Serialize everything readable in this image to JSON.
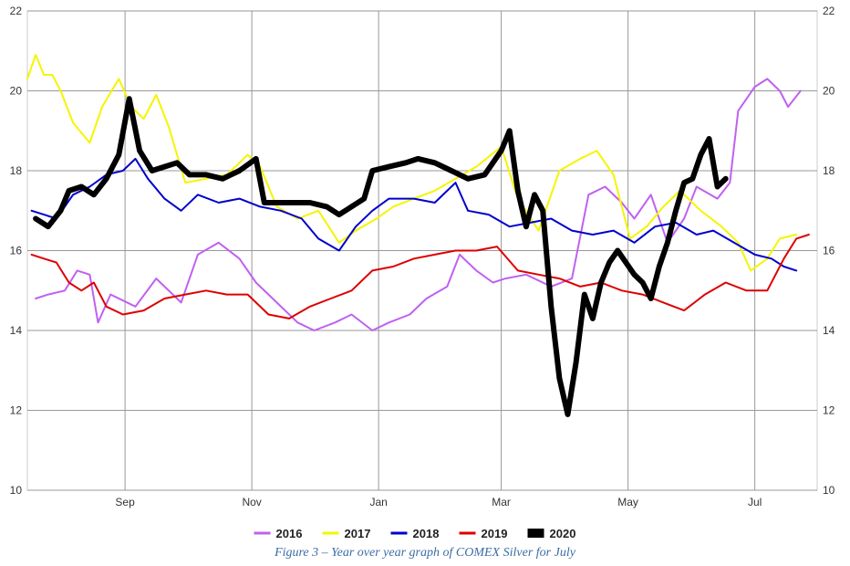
{
  "caption": "Figure 3 – Year over year graph of COMEX Silver for July",
  "chart_data": {
    "type": "line",
    "title": "",
    "xlabel": "",
    "ylabel": "",
    "x_tick_labels": [
      "Sep",
      "Nov",
      "Jan",
      "Mar",
      "May",
      "Jul"
    ],
    "x_tick_days": [
      31,
      92,
      153,
      212,
      273,
      334
    ],
    "x_range_days": [
      -16,
      364
    ],
    "ylim": [
      10,
      22
    ],
    "y_ticks": [
      10,
      12,
      14,
      16,
      18,
      20,
      22
    ],
    "y_axes": "both",
    "grid": true,
    "legend_position": "bottom",
    "series": [
      {
        "name": "2016",
        "color": "#c061f0",
        "width": 2,
        "points": [
          [
            -12,
            14.8
          ],
          [
            -6,
            14.9
          ],
          [
            2,
            15.0
          ],
          [
            8,
            15.5
          ],
          [
            14,
            15.4
          ],
          [
            18,
            14.2
          ],
          [
            24,
            14.9
          ],
          [
            36,
            14.6
          ],
          [
            46,
            15.3
          ],
          [
            58,
            14.7
          ],
          [
            66,
            15.9
          ],
          [
            76,
            16.2
          ],
          [
            86,
            15.8
          ],
          [
            94,
            15.2
          ],
          [
            104,
            14.7
          ],
          [
            114,
            14.2
          ],
          [
            122,
            14.0
          ],
          [
            132,
            14.2
          ],
          [
            140,
            14.4
          ],
          [
            150,
            14.0
          ],
          [
            158,
            14.2
          ],
          [
            168,
            14.4
          ],
          [
            176,
            14.8
          ],
          [
            186,
            15.1
          ],
          [
            192,
            15.9
          ],
          [
            200,
            15.5
          ],
          [
            208,
            15.2
          ],
          [
            214,
            15.3
          ],
          [
            224,
            15.4
          ],
          [
            236,
            15.1
          ],
          [
            246,
            15.3
          ],
          [
            254,
            17.4
          ],
          [
            262,
            17.6
          ],
          [
            270,
            17.2
          ],
          [
            276,
            16.8
          ],
          [
            284,
            17.4
          ],
          [
            292,
            16.2
          ],
          [
            300,
            16.8
          ],
          [
            306,
            17.6
          ],
          [
            316,
            17.3
          ],
          [
            322,
            17.7
          ],
          [
            326,
            19.5
          ],
          [
            334,
            20.1
          ],
          [
            340,
            20.3
          ],
          [
            346,
            20.0
          ],
          [
            350,
            19.6
          ],
          [
            356,
            20.0
          ]
        ]
      },
      {
        "name": "2017",
        "color": "#f5f500",
        "width": 2,
        "points": [
          [
            -16,
            20.3
          ],
          [
            -12,
            20.9
          ],
          [
            -8,
            20.4
          ],
          [
            -4,
            20.4
          ],
          [
            0,
            20.0
          ],
          [
            6,
            19.2
          ],
          [
            14,
            18.7
          ],
          [
            20,
            19.6
          ],
          [
            28,
            20.3
          ],
          [
            34,
            19.6
          ],
          [
            40,
            19.3
          ],
          [
            46,
            19.9
          ],
          [
            52,
            19.1
          ],
          [
            60,
            17.7
          ],
          [
            70,
            17.8
          ],
          [
            80,
            17.9
          ],
          [
            90,
            18.4
          ],
          [
            96,
            18.1
          ],
          [
            104,
            17.1
          ],
          [
            114,
            16.8
          ],
          [
            124,
            17.0
          ],
          [
            134,
            16.2
          ],
          [
            142,
            16.5
          ],
          [
            152,
            16.8
          ],
          [
            160,
            17.1
          ],
          [
            170,
            17.3
          ],
          [
            180,
            17.5
          ],
          [
            190,
            17.8
          ],
          [
            200,
            18.1
          ],
          [
            212,
            18.6
          ],
          [
            220,
            17.3
          ],
          [
            230,
            16.5
          ],
          [
            240,
            18.0
          ],
          [
            250,
            18.3
          ],
          [
            258,
            18.5
          ],
          [
            266,
            17.9
          ],
          [
            274,
            16.3
          ],
          [
            282,
            16.6
          ],
          [
            290,
            17.1
          ],
          [
            298,
            17.5
          ],
          [
            308,
            17.0
          ],
          [
            318,
            16.6
          ],
          [
            326,
            16.2
          ],
          [
            332,
            15.5
          ],
          [
            340,
            15.8
          ],
          [
            346,
            16.3
          ],
          [
            354,
            16.4
          ]
        ]
      },
      {
        "name": "2018",
        "color": "#0000cc",
        "width": 2,
        "points": [
          [
            -14,
            17.0
          ],
          [
            -8,
            16.9
          ],
          [
            -2,
            16.8
          ],
          [
            6,
            17.4
          ],
          [
            14,
            17.6
          ],
          [
            22,
            17.9
          ],
          [
            30,
            18.0
          ],
          [
            36,
            18.3
          ],
          [
            42,
            17.8
          ],
          [
            50,
            17.3
          ],
          [
            58,
            17.0
          ],
          [
            66,
            17.4
          ],
          [
            76,
            17.2
          ],
          [
            86,
            17.3
          ],
          [
            96,
            17.1
          ],
          [
            106,
            17.0
          ],
          [
            116,
            16.8
          ],
          [
            124,
            16.3
          ],
          [
            134,
            16.0
          ],
          [
            142,
            16.6
          ],
          [
            150,
            17.0
          ],
          [
            158,
            17.3
          ],
          [
            170,
            17.3
          ],
          [
            180,
            17.2
          ],
          [
            190,
            17.7
          ],
          [
            196,
            17.0
          ],
          [
            206,
            16.9
          ],
          [
            216,
            16.6
          ],
          [
            226,
            16.7
          ],
          [
            236,
            16.8
          ],
          [
            246,
            16.5
          ],
          [
            256,
            16.4
          ],
          [
            266,
            16.5
          ],
          [
            276,
            16.2
          ],
          [
            286,
            16.6
          ],
          [
            296,
            16.7
          ],
          [
            306,
            16.4
          ],
          [
            314,
            16.5
          ],
          [
            324,
            16.2
          ],
          [
            334,
            15.9
          ],
          [
            342,
            15.8
          ],
          [
            348,
            15.6
          ],
          [
            354,
            15.5
          ]
        ]
      },
      {
        "name": "2019",
        "color": "#dd0000",
        "width": 2,
        "points": [
          [
            -14,
            15.9
          ],
          [
            -8,
            15.8
          ],
          [
            -2,
            15.7
          ],
          [
            4,
            15.2
          ],
          [
            10,
            15.0
          ],
          [
            16,
            15.2
          ],
          [
            22,
            14.6
          ],
          [
            30,
            14.4
          ],
          [
            40,
            14.5
          ],
          [
            50,
            14.8
          ],
          [
            60,
            14.9
          ],
          [
            70,
            15.0
          ],
          [
            80,
            14.9
          ],
          [
            90,
            14.9
          ],
          [
            100,
            14.4
          ],
          [
            110,
            14.3
          ],
          [
            120,
            14.6
          ],
          [
            130,
            14.8
          ],
          [
            140,
            15.0
          ],
          [
            150,
            15.5
          ],
          [
            160,
            15.6
          ],
          [
            170,
            15.8
          ],
          [
            180,
            15.9
          ],
          [
            190,
            16.0
          ],
          [
            200,
            16.0
          ],
          [
            210,
            16.1
          ],
          [
            220,
            15.5
          ],
          [
            230,
            15.4
          ],
          [
            240,
            15.3
          ],
          [
            250,
            15.1
          ],
          [
            260,
            15.2
          ],
          [
            270,
            15.0
          ],
          [
            280,
            14.9
          ],
          [
            290,
            14.7
          ],
          [
            300,
            14.5
          ],
          [
            310,
            14.9
          ],
          [
            320,
            15.2
          ],
          [
            330,
            15.0
          ],
          [
            340,
            15.0
          ],
          [
            348,
            15.8
          ],
          [
            354,
            16.3
          ],
          [
            360,
            16.4
          ]
        ]
      },
      {
        "name": "2020",
        "color": "#000000",
        "width": 6,
        "points": [
          [
            -12,
            16.8
          ],
          [
            -6,
            16.6
          ],
          [
            0,
            17.0
          ],
          [
            4,
            17.5
          ],
          [
            10,
            17.6
          ],
          [
            16,
            17.4
          ],
          [
            22,
            17.8
          ],
          [
            28,
            18.4
          ],
          [
            33,
            19.8
          ],
          [
            38,
            18.5
          ],
          [
            44,
            18.0
          ],
          [
            50,
            18.1
          ],
          [
            56,
            18.2
          ],
          [
            62,
            17.9
          ],
          [
            70,
            17.9
          ],
          [
            78,
            17.8
          ],
          [
            86,
            18.0
          ],
          [
            94,
            18.3
          ],
          [
            98,
            17.2
          ],
          [
            104,
            17.2
          ],
          [
            112,
            17.2
          ],
          [
            120,
            17.2
          ],
          [
            128,
            17.1
          ],
          [
            134,
            16.9
          ],
          [
            140,
            17.1
          ],
          [
            146,
            17.3
          ],
          [
            150,
            18.0
          ],
          [
            158,
            18.1
          ],
          [
            166,
            18.2
          ],
          [
            172,
            18.3
          ],
          [
            180,
            18.2
          ],
          [
            188,
            18.0
          ],
          [
            196,
            17.8
          ],
          [
            204,
            17.9
          ],
          [
            212,
            18.5
          ],
          [
            216,
            19.0
          ],
          [
            220,
            17.5
          ],
          [
            224,
            16.6
          ],
          [
            228,
            17.4
          ],
          [
            232,
            17.0
          ],
          [
            236,
            14.6
          ],
          [
            240,
            12.8
          ],
          [
            244,
            11.9
          ],
          [
            248,
            13.2
          ],
          [
            252,
            14.9
          ],
          [
            256,
            14.3
          ],
          [
            260,
            15.2
          ],
          [
            264,
            15.7
          ],
          [
            268,
            16.0
          ],
          [
            272,
            15.7
          ],
          [
            276,
            15.4
          ],
          [
            280,
            15.2
          ],
          [
            284,
            14.8
          ],
          [
            288,
            15.6
          ],
          [
            292,
            16.2
          ],
          [
            296,
            17.0
          ],
          [
            300,
            17.7
          ],
          [
            304,
            17.8
          ],
          [
            308,
            18.4
          ],
          [
            312,
            18.8
          ],
          [
            316,
            17.6
          ],
          [
            320,
            17.8
          ]
        ]
      }
    ]
  }
}
